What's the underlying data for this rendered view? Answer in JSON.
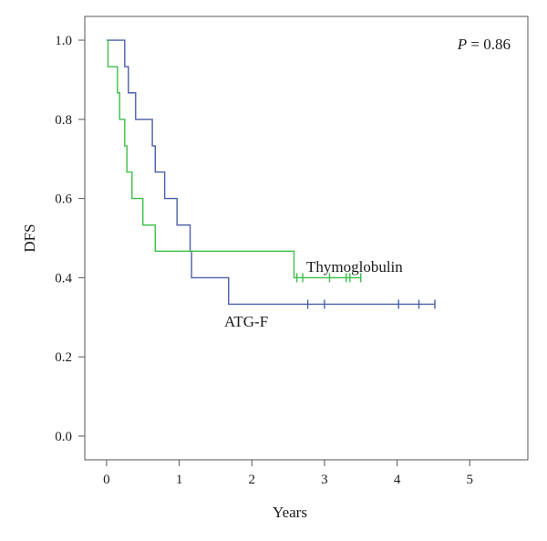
{
  "chart_data": {
    "type": "line",
    "step": true,
    "xlabel": "Years",
    "ylabel": "DFS",
    "xlim": [
      -0.3,
      5.8
    ],
    "ylim": [
      -0.06,
      1.06
    ],
    "xticks": [
      0,
      1,
      2,
      3,
      4,
      5
    ],
    "yticks": [
      0.0,
      0.2,
      0.4,
      0.6,
      0.8,
      1.0
    ],
    "xtick_labels": [
      "0",
      "1",
      "2",
      "3",
      "4",
      "5"
    ],
    "ytick_labels": [
      "0.0",
      "0.2",
      "0.4",
      "0.6",
      "0.8",
      "1.0"
    ],
    "grid": false,
    "annotation": {
      "p_symbol": "P",
      "p_text": " = 0.86"
    },
    "series": [
      {
        "name": "ATG-F",
        "color": "#4a5fa8",
        "steps": [
          [
            0,
            1.0
          ],
          [
            0.25,
            0.933
          ],
          [
            0.3,
            0.867
          ],
          [
            0.4,
            0.8
          ],
          [
            0.63,
            0.733
          ],
          [
            0.67,
            0.667
          ],
          [
            0.8,
            0.6
          ],
          [
            0.97,
            0.533
          ],
          [
            1.15,
            0.467
          ],
          [
            1.17,
            0.4
          ],
          [
            1.68,
            0.333
          ]
        ],
        "end_x": 4.52,
        "censored": [
          2.77,
          3.0,
          4.02,
          4.3,
          4.52
        ]
      },
      {
        "name": "Thymoglobulin",
        "color": "#3cbf4a",
        "steps": [
          [
            0,
            1.0
          ],
          [
            0.02,
            0.933
          ],
          [
            0.15,
            0.867
          ],
          [
            0.18,
            0.8
          ],
          [
            0.25,
            0.733
          ],
          [
            0.28,
            0.667
          ],
          [
            0.35,
            0.6
          ],
          [
            0.5,
            0.533
          ],
          [
            0.67,
            0.467
          ],
          [
            2.58,
            0.4
          ]
        ],
        "end_x": 3.5,
        "censored": [
          2.62,
          2.7,
          3.07,
          3.3,
          3.35,
          3.5
        ]
      }
    ]
  }
}
